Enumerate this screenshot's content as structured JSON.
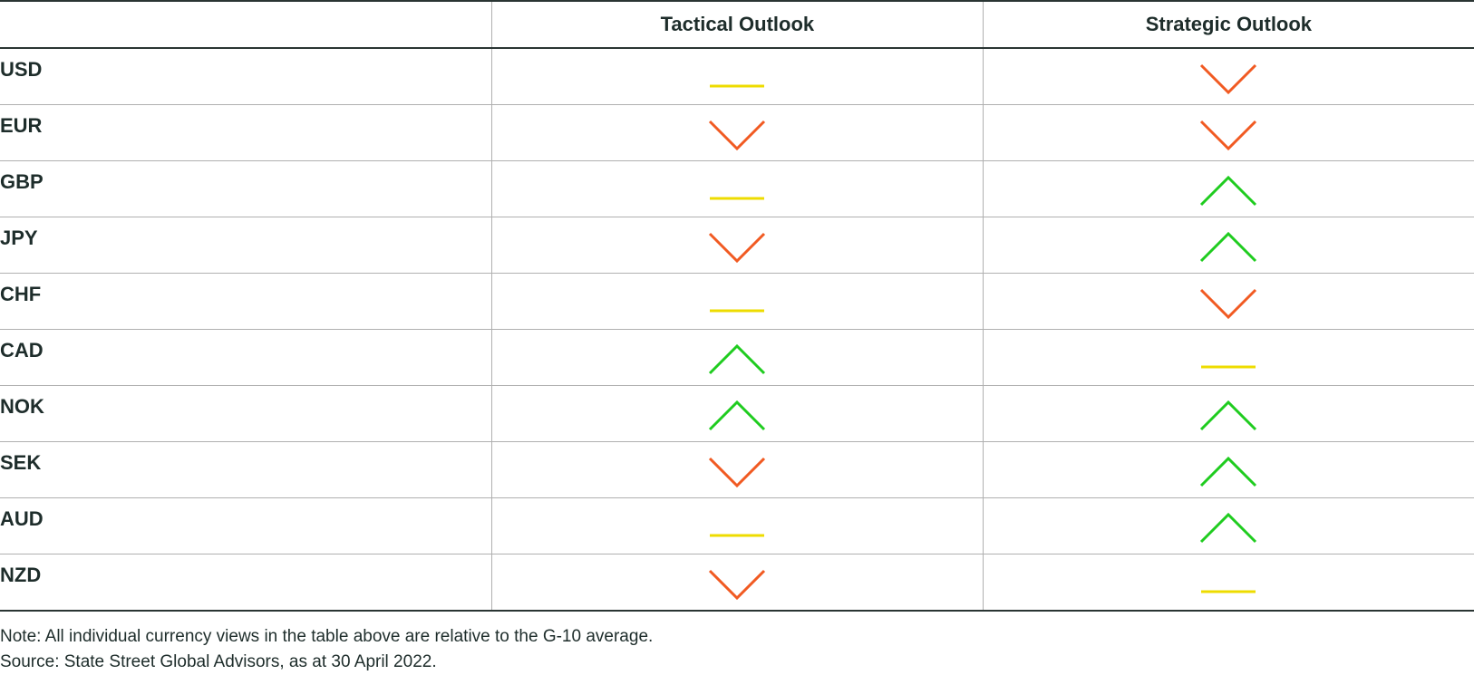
{
  "header": {
    "columns": [
      "Tactical Outlook",
      "Strategic Outlook"
    ]
  },
  "table": {
    "rows": [
      "USD",
      "EUR",
      "GBP",
      "JPY",
      "CHF",
      "CAD",
      "NOK",
      "SEK",
      "AUD",
      "NZD"
    ]
  },
  "notes": [
    "Note: All individual currency views in the table above are relative to the G-10 average.",
    "Source: State Street Global Advisors, as at 30 April 2022."
  ]
}
